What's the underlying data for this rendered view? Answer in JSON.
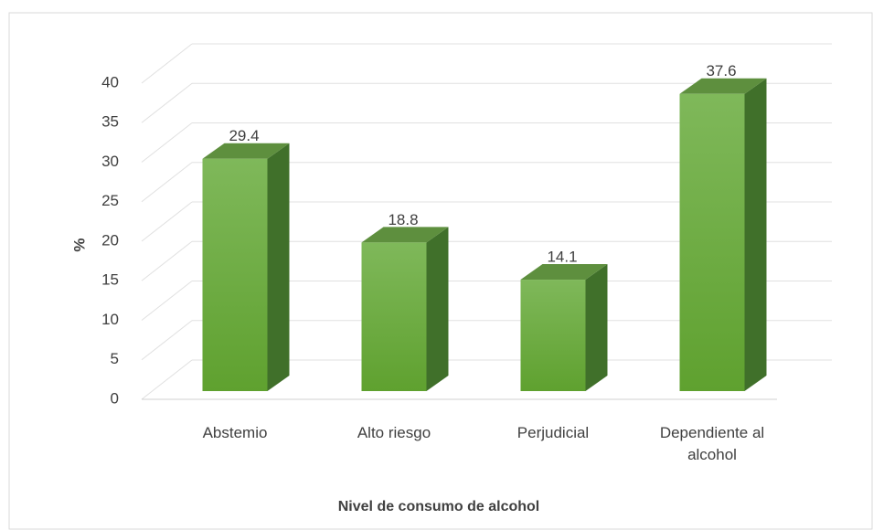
{
  "chart_data": {
    "type": "bar3d",
    "xlabel": "Nivel de consumo de alcohol",
    "ylabel": "%",
    "categories": [
      "Abstemio",
      "Alto riesgo",
      "Perjudicial",
      "Dependiente al alcohol"
    ],
    "values": [
      29.4,
      18.8,
      14.1,
      37.6
    ],
    "color": "#6aaa3a",
    "ylim": [
      0,
      40
    ],
    "yticks": [
      0,
      5,
      10,
      15,
      20,
      25,
      30,
      35,
      40
    ],
    "grid": true
  }
}
